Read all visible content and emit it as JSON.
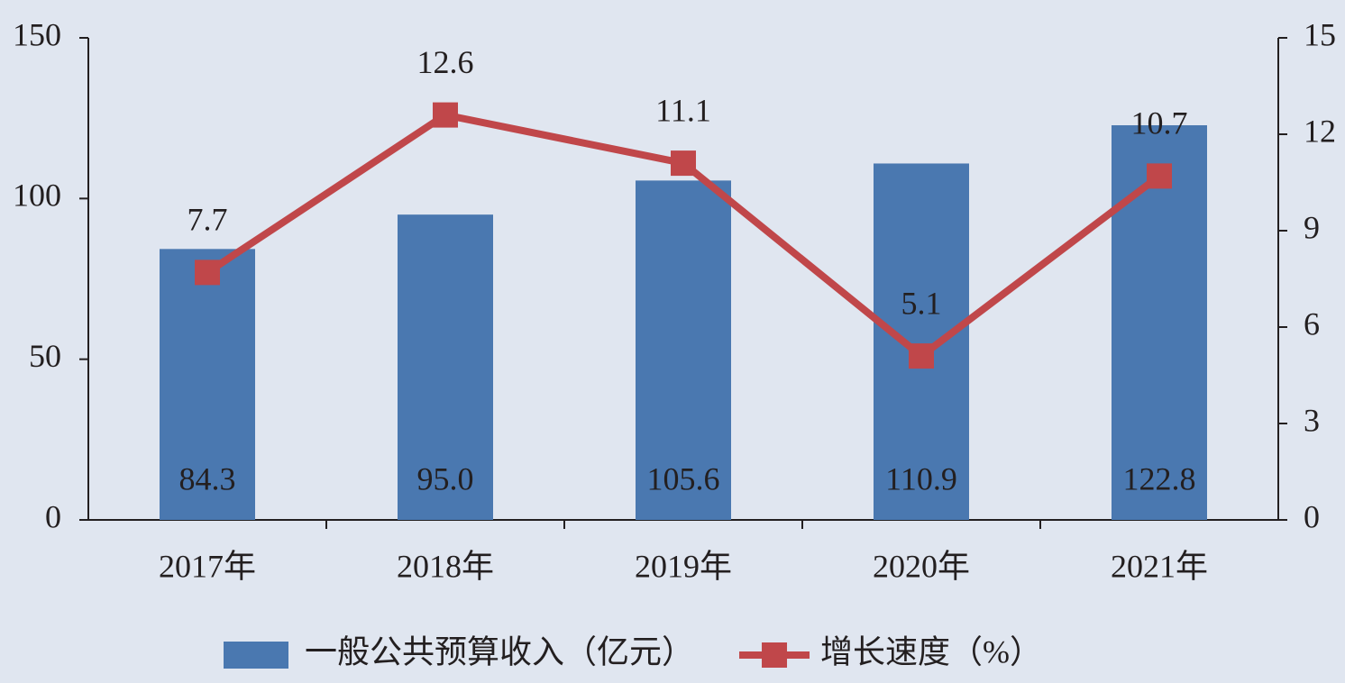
{
  "chart_data": {
    "type": "bar",
    "categories": [
      "2017年",
      "2018年",
      "2019年",
      "2020年",
      "2021年"
    ],
    "series": [
      {
        "name": "一般公共预算收入（亿元）",
        "type": "bar",
        "color": "#4a78b0",
        "values": [
          84.3,
          95.0,
          105.6,
          110.9,
          122.8
        ],
        "value_labels": [
          "84.3",
          "95.0",
          "105.6",
          "110.9",
          "122.8"
        ]
      },
      {
        "name": "增长速度（%）",
        "type": "line",
        "axis": "y2",
        "color": "#c0474a",
        "values": [
          7.7,
          12.6,
          11.1,
          5.1,
          10.7
        ]
      }
    ],
    "ylim": [
      0,
      150
    ],
    "yticks": [
      0,
      50,
      100,
      150
    ],
    "y2lim": [
      0,
      15
    ],
    "y2ticks": [
      0,
      3,
      6,
      9,
      12,
      15
    ],
    "legend": "bottom"
  }
}
